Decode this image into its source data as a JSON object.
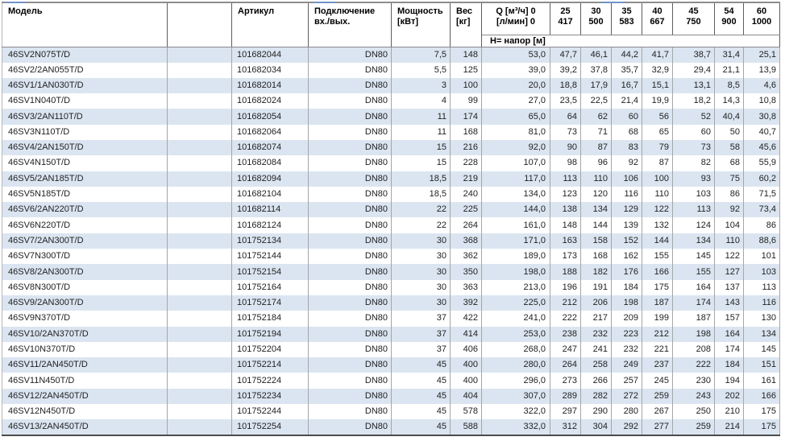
{
  "colors": {
    "row_stripe": "#dbe5f1",
    "grid_data": "#a6a6a6",
    "grid_header": "#5e5e5e",
    "table_top_border": "#8c8c8c",
    "table_bottom_border": "#4c4c4c",
    "cropped_text_fragments": "#6f93c9"
  },
  "table": {
    "header": {
      "model": "Модель",
      "spacer": "",
      "article": "Артикул",
      "connection_line1": "Подключение",
      "connection_line2": "вх./вых.",
      "power_line1": "Мощность",
      "power_line2": "[кВт]",
      "weight_line1": "Вес",
      "weight_line2": "[кг]",
      "q_line1": "Q [м³/ч] 0",
      "q_line2": "[л/мин] 0",
      "flow_points": [
        {
          "m3h": "25",
          "lmin": "417"
        },
        {
          "m3h": "30",
          "lmin": "500"
        },
        {
          "m3h": "35",
          "lmin": "583"
        },
        {
          "m3h": "40",
          "lmin": "667"
        },
        {
          "m3h": "45",
          "lmin": "750"
        },
        {
          "m3h": "54",
          "lmin": "900"
        },
        {
          "m3h": "60",
          "lmin": "1000"
        }
      ],
      "subheader": "H= напор [м]"
    },
    "rows": [
      {
        "model": "46SV2N075T/D",
        "article": "101682044",
        "connection": "DN80",
        "power": "7,5",
        "weight": "148",
        "heads": [
          "53,0",
          "47,7",
          "46,1",
          "44,2",
          "41,7",
          "38,7",
          "31,4",
          "25,1"
        ]
      },
      {
        "model": "46SV2/2AN055T/D",
        "article": "101682034",
        "connection": "DN80",
        "power": "5,5",
        "weight": "125",
        "heads": [
          "39,0",
          "39,2",
          "37,8",
          "35,7",
          "32,9",
          "29,4",
          "21,1",
          "13,9"
        ]
      },
      {
        "model": "46SV1/1AN030T/D",
        "article": "101682014",
        "connection": "DN80",
        "power": "3",
        "weight": "100",
        "heads": [
          "20,0",
          "18,8",
          "17,9",
          "16,7",
          "15,1",
          "13,1",
          "8,5",
          "4,6"
        ]
      },
      {
        "model": "46SV1N040T/D",
        "article": "101682024",
        "connection": "DN80",
        "power": "4",
        "weight": "99",
        "heads": [
          "27,0",
          "23,5",
          "22,5",
          "21,4",
          "19,9",
          "18,2",
          "14,3",
          "10,8"
        ]
      },
      {
        "model": "46SV3/2AN110T/D",
        "article": "101682054",
        "connection": "DN80",
        "power": "11",
        "weight": "174",
        "heads": [
          "65,0",
          "64",
          "62",
          "60",
          "56",
          "52",
          "40,4",
          "30,8"
        ]
      },
      {
        "model": "46SV3N110T/D",
        "article": "101682064",
        "connection": "DN80",
        "power": "11",
        "weight": "168",
        "heads": [
          "81,0",
          "73",
          "71",
          "68",
          "65",
          "60",
          "50",
          "40,7"
        ]
      },
      {
        "model": "46SV4/2AN150T/D",
        "article": "101682074",
        "connection": "DN80",
        "power": "15",
        "weight": "216",
        "heads": [
          "92,0",
          "90",
          "87",
          "83",
          "79",
          "73",
          "58",
          "45,6"
        ]
      },
      {
        "model": "46SV4N150T/D",
        "article": "101682084",
        "connection": "DN80",
        "power": "15",
        "weight": "228",
        "heads": [
          "107,0",
          "98",
          "96",
          "92",
          "87",
          "82",
          "68",
          "55,9"
        ]
      },
      {
        "model": "46SV5/2AN185T/D",
        "article": "101682094",
        "connection": "DN80",
        "power": "18,5",
        "weight": "219",
        "heads": [
          "117,0",
          "113",
          "110",
          "106",
          "100",
          "93",
          "75",
          "60,2"
        ]
      },
      {
        "model": "46SV5N185T/D",
        "article": "101682104",
        "connection": "DN80",
        "power": "18,5",
        "weight": "240",
        "heads": [
          "134,0",
          "123",
          "120",
          "116",
          "110",
          "103",
          "86",
          "71,5"
        ]
      },
      {
        "model": "46SV6/2AN220T/D",
        "article": "101682114",
        "connection": "DN80",
        "power": "22",
        "weight": "225",
        "heads": [
          "144,0",
          "138",
          "134",
          "129",
          "122",
          "113",
          "92",
          "73,4"
        ]
      },
      {
        "model": "46SV6N220T/D",
        "article": "101682124",
        "connection": "DN80",
        "power": "22",
        "weight": "264",
        "heads": [
          "161,0",
          "148",
          "144",
          "139",
          "132",
          "124",
          "104",
          "86"
        ]
      },
      {
        "model": "46SV7/2AN300T/D",
        "article": "101752134",
        "connection": "DN80",
        "power": "30",
        "weight": "368",
        "heads": [
          "171,0",
          "163",
          "158",
          "152",
          "144",
          "134",
          "110",
          "88,6"
        ]
      },
      {
        "model": "46SV7N300T/D",
        "article": "101752144",
        "connection": "DN80",
        "power": "30",
        "weight": "362",
        "heads": [
          "189,0",
          "173",
          "168",
          "162",
          "155",
          "145",
          "122",
          "101"
        ]
      },
      {
        "model": "46SV8/2AN300T/D",
        "article": "101752154",
        "connection": "DN80",
        "power": "30",
        "weight": "350",
        "heads": [
          "198,0",
          "188",
          "182",
          "176",
          "166",
          "155",
          "127",
          "103"
        ]
      },
      {
        "model": "46SV8N300T/D",
        "article": "101752164",
        "connection": "DN80",
        "power": "30",
        "weight": "363",
        "heads": [
          "213,0",
          "196",
          "191",
          "184",
          "175",
          "164",
          "137",
          "113"
        ]
      },
      {
        "model": "46SV9/2AN300T/D",
        "article": "101752174",
        "connection": "DN80",
        "power": "30",
        "weight": "392",
        "heads": [
          "225,0",
          "212",
          "206",
          "198",
          "187",
          "174",
          "143",
          "116"
        ]
      },
      {
        "model": "46SV9N370T/D",
        "article": "101752184",
        "connection": "DN80",
        "power": "37",
        "weight": "422",
        "heads": [
          "241,0",
          "222",
          "217",
          "209",
          "199",
          "187",
          "157",
          "130"
        ]
      },
      {
        "model": "46SV10/2AN370T/D",
        "article": "101752194",
        "connection": "DN80",
        "power": "37",
        "weight": "414",
        "heads": [
          "253,0",
          "238",
          "232",
          "223",
          "212",
          "198",
          "164",
          "134"
        ]
      },
      {
        "model": "46SV10N370T/D",
        "article": "101752204",
        "connection": "DN80",
        "power": "37",
        "weight": "406",
        "heads": [
          "268,0",
          "247",
          "241",
          "232",
          "221",
          "208",
          "174",
          "145"
        ]
      },
      {
        "model": "46SV11/2AN450T/D",
        "article": "101752214",
        "connection": "DN80",
        "power": "45",
        "weight": "400",
        "heads": [
          "280,0",
          "264",
          "258",
          "249",
          "237",
          "222",
          "184",
          "151"
        ]
      },
      {
        "model": "46SV11N450T/D",
        "article": "101752224",
        "connection": "DN80",
        "power": "45",
        "weight": "400",
        "heads": [
          "296,0",
          "273",
          "266",
          "257",
          "245",
          "230",
          "194",
          "161"
        ]
      },
      {
        "model": "46SV12/2AN450T/D",
        "article": "101752234",
        "connection": "DN80",
        "power": "45",
        "weight": "404",
        "heads": [
          "307,0",
          "289",
          "282",
          "272",
          "259",
          "243",
          "202",
          "166"
        ]
      },
      {
        "model": "46SV12N450T/D",
        "article": "101752244",
        "connection": "DN80",
        "power": "45",
        "weight": "578",
        "heads": [
          "322,0",
          "297",
          "290",
          "280",
          "267",
          "250",
          "210",
          "175"
        ]
      },
      {
        "model": "46SV13/2AN450T/D",
        "article": "101752254",
        "connection": "DN80",
        "power": "45",
        "weight": "588",
        "heads": [
          "332,0",
          "312",
          "304",
          "292",
          "277",
          "259",
          "214",
          "175"
        ]
      }
    ]
  }
}
